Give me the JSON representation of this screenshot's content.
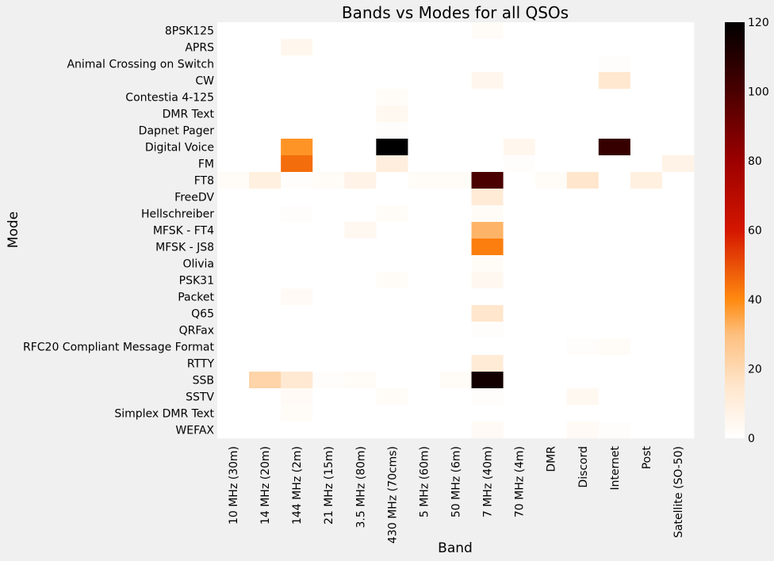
{
  "chart_data": {
    "type": "heatmap",
    "title": "Bands vs Modes for all QSOs",
    "xlabel": "Band",
    "ylabel": "Mode",
    "colormap": "gist_heat_r",
    "zlim": [
      0,
      120
    ],
    "colorbar_ticks": [
      0,
      20,
      40,
      60,
      80,
      100,
      120
    ],
    "colorbar_tick_labels": [
      "0",
      "20",
      "40",
      "60",
      "80",
      "100",
      "120"
    ],
    "bands": [
      "10 MHz (30m)",
      "14 MHz (20m)",
      "144 MHz (2m)",
      "21 MHz (15m)",
      "3.5 MHz (80m)",
      "430 MHz (70cms)",
      "5 MHz (60m)",
      "50 MHz (6m)",
      "7 MHz (40m)",
      "70 MHz (4m)",
      "DMR",
      "Discord",
      "Internet",
      "Post",
      "Satellite (SO-50)"
    ],
    "modes": [
      "8PSK125",
      "APRS",
      "Animal Crossing on Switch",
      "CW",
      "Contestia 4-125",
      "DMR Text",
      "Dapnet Pager",
      "Digital Voice",
      "FM",
      "FT8",
      "FreeDV",
      "Hellschreiber",
      "MFSK - FT4",
      "MFSK - JS8",
      "Olivia",
      "PSK31",
      "Packet",
      "Q65",
      "QRFax",
      "RFC20 Compliant Message Format",
      "RTTY",
      "SSB",
      "SSTV",
      "Simplex DMR Text",
      "WEFAX"
    ],
    "values": [
      [
        0,
        0,
        0,
        0,
        0,
        0,
        0,
        0,
        2,
        0,
        0,
        0,
        0,
        0,
        0
      ],
      [
        0,
        0,
        5,
        0,
        0,
        0,
        0,
        0,
        0,
        0,
        0,
        0,
        0,
        0,
        0
      ],
      [
        0,
        0,
        0,
        0,
        0,
        0,
        0,
        0,
        0,
        0,
        0,
        0,
        1,
        0,
        0
      ],
      [
        0,
        0,
        0,
        0,
        0,
        0,
        0,
        0,
        5,
        0,
        0,
        0,
        14,
        0,
        0
      ],
      [
        0,
        0,
        0,
        0,
        0,
        2,
        0,
        0,
        0,
        0,
        0,
        0,
        0,
        0,
        0
      ],
      [
        0,
        0,
        0,
        0,
        0,
        4,
        0,
        0,
        0,
        0,
        0,
        0,
        0,
        0,
        0
      ],
      [
        0,
        0,
        0,
        0,
        0,
        1,
        0,
        0,
        0,
        0,
        0,
        0,
        0,
        0,
        0
      ],
      [
        0,
        0,
        38,
        0,
        0,
        120,
        0,
        0,
        0,
        5,
        0,
        0,
        105,
        0,
        0
      ],
      [
        0,
        0,
        45,
        0,
        0,
        10,
        0,
        0,
        0,
        1,
        0,
        0,
        0,
        0,
        7
      ],
      [
        2,
        9,
        1,
        2,
        7,
        0,
        2,
        2,
        100,
        0,
        2,
        15,
        0,
        9,
        0
      ],
      [
        0,
        0,
        0,
        0,
        0,
        0,
        0,
        0,
        12,
        0,
        0,
        0,
        0,
        0,
        0
      ],
      [
        0,
        0,
        1,
        0,
        0,
        2,
        0,
        0,
        2,
        0,
        0,
        0,
        0,
        0,
        0
      ],
      [
        0,
        0,
        0,
        0,
        4,
        0,
        0,
        0,
        32,
        0,
        0,
        0,
        0,
        0,
        0
      ],
      [
        0,
        0,
        0,
        0,
        0,
        0,
        0,
        0,
        42,
        0,
        0,
        0,
        0,
        0,
        0
      ],
      [
        0,
        0,
        0,
        0,
        0,
        0,
        0,
        0,
        2,
        0,
        0,
        0,
        0,
        0,
        0
      ],
      [
        0,
        0,
        0,
        0,
        0,
        2,
        0,
        0,
        4,
        0,
        0,
        0,
        0,
        0,
        0
      ],
      [
        0,
        0,
        3,
        0,
        0,
        0,
        0,
        0,
        0,
        0,
        0,
        0,
        0,
        0,
        0
      ],
      [
        0,
        0,
        0,
        0,
        0,
        0,
        0,
        0,
        15,
        0,
        0,
        0,
        0,
        0,
        0
      ],
      [
        0,
        0,
        0,
        0,
        0,
        0,
        0,
        0,
        1,
        0,
        0,
        0,
        0,
        0,
        0
      ],
      [
        0,
        0,
        0,
        0,
        0,
        0,
        0,
        0,
        0,
        0,
        0,
        1,
        2,
        0,
        0
      ],
      [
        0,
        0,
        0,
        0,
        0,
        0,
        0,
        0,
        12,
        0,
        0,
        0,
        0,
        0,
        0
      ],
      [
        0,
        22,
        13,
        1,
        2,
        0,
        0,
        2,
        115,
        0,
        0,
        0,
        0,
        0,
        0
      ],
      [
        0,
        0,
        3,
        0,
        0,
        2,
        0,
        0,
        1,
        0,
        0,
        4,
        0,
        0,
        0
      ],
      [
        0,
        0,
        2,
        0,
        0,
        0,
        0,
        0,
        0,
        0,
        0,
        0,
        0,
        0,
        0
      ],
      [
        0,
        0,
        0,
        0,
        0,
        0,
        0,
        0,
        3,
        0,
        0,
        3,
        1,
        0,
        0
      ]
    ]
  }
}
